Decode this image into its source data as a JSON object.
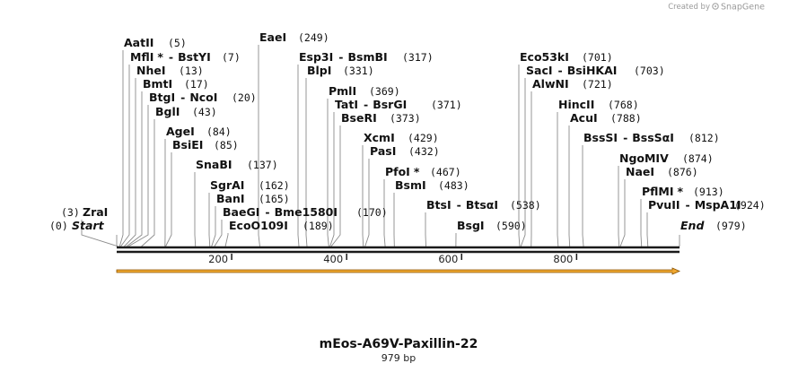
{
  "credit": {
    "prefix": "Created by",
    "brand": "SnapGene"
  },
  "sequence": {
    "name": "mEos-A69V-Paxillin-22",
    "length_label": "979 bp",
    "length": 979
  },
  "ends": {
    "start": {
      "label": "Start",
      "position_text": "(0)"
    },
    "end": {
      "label": "End",
      "position_text": "(979)"
    }
  },
  "ticks": [
    {
      "value": 200,
      "label": "200"
    },
    {
      "value": 400,
      "label": "400"
    },
    {
      "value": 600,
      "label": "600"
    },
    {
      "value": 800,
      "label": "800"
    }
  ],
  "enzymes": [
    {
      "name": "AatII",
      "position": 5,
      "position_text": "(5)"
    },
    {
      "name": "MflI",
      "star": "*",
      "partner": "BstYI",
      "position": 7,
      "position_text": "(7)"
    },
    {
      "name": "NheI",
      "position": 13,
      "position_text": "(13)"
    },
    {
      "name": "BmtI",
      "position": 17,
      "position_text": "(17)"
    },
    {
      "name": "BtgI",
      "partner": "NcoI",
      "position": 20,
      "position_text": "(20)"
    },
    {
      "name": "BglI",
      "position": 43,
      "position_text": "(43)"
    },
    {
      "name": "AgeI",
      "position": 84,
      "position_text": "(84)"
    },
    {
      "name": "BsiEI",
      "position": 85,
      "position_text": "(85)"
    },
    {
      "name": "SnaBI",
      "position": 137,
      "position_text": "(137)"
    },
    {
      "name": "SgrAI",
      "position": 162,
      "position_text": "(162)"
    },
    {
      "name": "BanI",
      "position": 165,
      "position_text": "(165)"
    },
    {
      "name": "BaeGI",
      "partner": "Bme1580I",
      "position": 170,
      "position_text": "(170)"
    },
    {
      "name": "EcoO109I",
      "position": 189,
      "position_text": "(189)"
    },
    {
      "name": "EaeI",
      "position": 249,
      "position_text": "(249)"
    },
    {
      "name": "Esp3I",
      "partner": "BsmBI",
      "position": 317,
      "position_text": "(317)"
    },
    {
      "name": "BlpI",
      "position": 331,
      "position_text": "(331)"
    },
    {
      "name": "PmlI",
      "position": 369,
      "position_text": "(369)"
    },
    {
      "name": "TatI",
      "partner": "BsrGI",
      "position": 371,
      "position_text": "(371)"
    },
    {
      "name": "BseRI",
      "position": 373,
      "position_text": "(373)"
    },
    {
      "name": "XcmI",
      "position": 429,
      "position_text": "(429)"
    },
    {
      "name": "PasI",
      "position": 432,
      "position_text": "(432)"
    },
    {
      "name": "PfoI",
      "star": "*",
      "position": 467,
      "position_text": "(467)"
    },
    {
      "name": "BsmI",
      "position": 483,
      "position_text": "(483)"
    },
    {
      "name": "BtsI",
      "partner": "BtsαI",
      "position": 538,
      "position_text": "(538)"
    },
    {
      "name": "BsgI",
      "position": 590,
      "position_text": "(590)"
    },
    {
      "name": "Eco53kI",
      "position": 701,
      "position_text": "(701)"
    },
    {
      "name": "SacI",
      "partner": "BsiHKAI",
      "position": 703,
      "position_text": "(703)"
    },
    {
      "name": "AlwNI",
      "position": 721,
      "position_text": "(721)"
    },
    {
      "name": "HincII",
      "position": 768,
      "position_text": "(768)"
    },
    {
      "name": "AcuI",
      "position": 788,
      "position_text": "(788)"
    },
    {
      "name": "BssSI",
      "partner": "BssSαI",
      "position": 812,
      "position_text": "(812)"
    },
    {
      "name": "NgoMIV",
      "position": 874,
      "position_text": "(874)"
    },
    {
      "name": "NaeI",
      "position": 876,
      "position_text": "(876)"
    },
    {
      "name": "PflMI",
      "star": "*",
      "position": 913,
      "position_text": "(913)"
    },
    {
      "name": "PvuII",
      "partner": "MspA1I",
      "position": 924,
      "position_text": "(924)"
    },
    {
      "name": "ZraI",
      "position": 3,
      "position_text": "(3)"
    }
  ],
  "colors": {
    "backbone": "#1a1a1a",
    "feature_fill": "#f0a830",
    "feature_edge": "#8a5200"
  }
}
